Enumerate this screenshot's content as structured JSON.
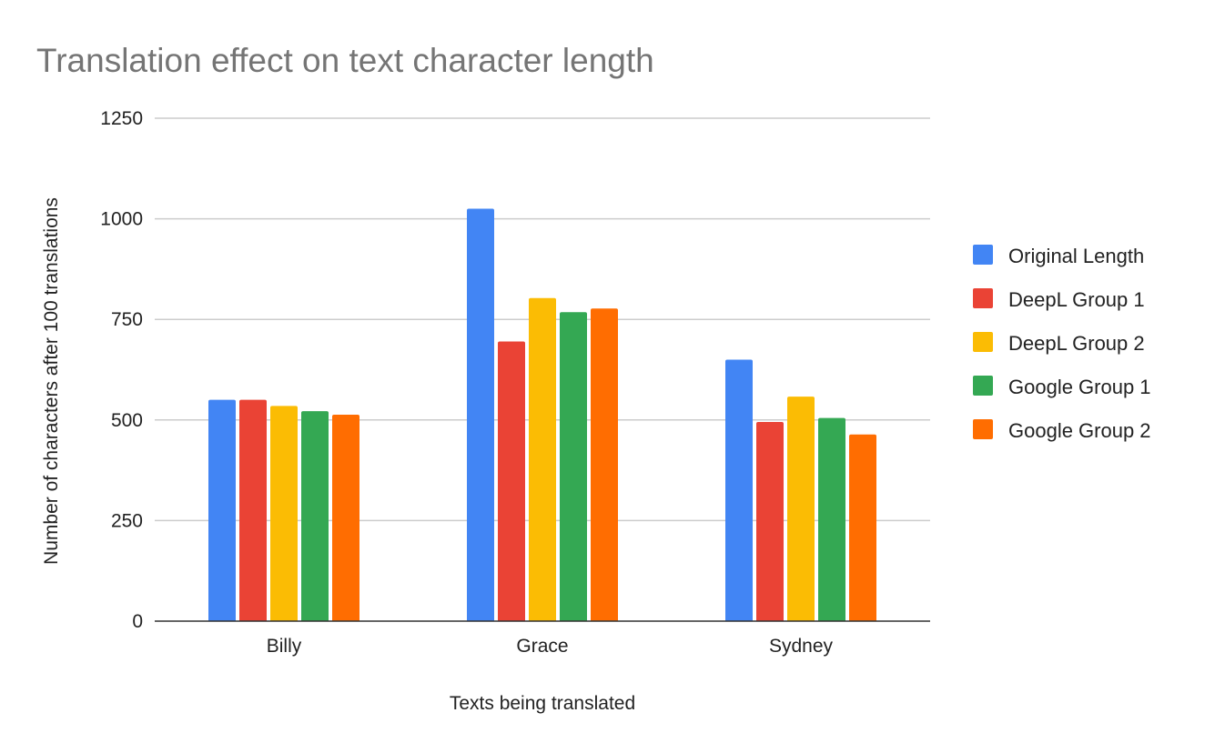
{
  "chart_data": {
    "type": "bar",
    "title": "Translation effect on text character length",
    "xlabel": "Texts being translated",
    "ylabel": "Number of characters after 100 translations",
    "categories": [
      "Billy",
      "Grace",
      "Sydney"
    ],
    "yticks": [
      0,
      250,
      500,
      750,
      1000,
      1250
    ],
    "ylim": [
      0,
      1250
    ],
    "grid": true,
    "legend_position": "right",
    "series": [
      {
        "name": "Original Length",
        "color": "#4285f4",
        "values": [
          550,
          1025,
          650
        ]
      },
      {
        "name": "DeepL Group 1",
        "color": "#ea4335",
        "values": [
          550,
          695,
          495
        ]
      },
      {
        "name": "DeepL Group 2",
        "color": "#fbbc04",
        "values": [
          535,
          803,
          558
        ]
      },
      {
        "name": "Google Group 1",
        "color": "#34a853",
        "values": [
          522,
          768,
          505
        ]
      },
      {
        "name": "Google Group 2",
        "color": "#ff6d01",
        "values": [
          513,
          777,
          464
        ]
      }
    ]
  }
}
